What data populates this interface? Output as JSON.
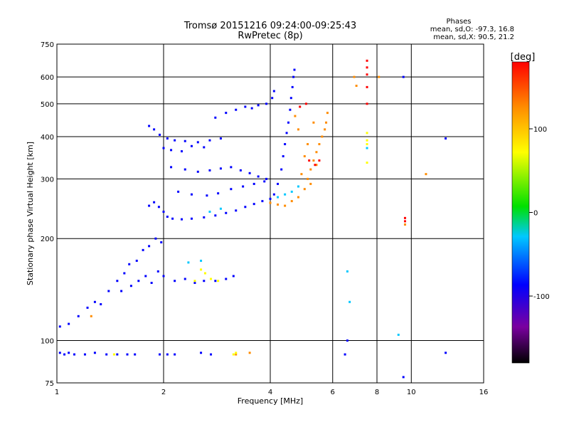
{
  "chart_data": {
    "type": "scatter",
    "title": "Tromsø 20151216 09:24:00-09:25:43",
    "subtitle": "RwPretec (8p)",
    "xlabel": "Frequency [MHz]",
    "ylabel": "Stationary phase Virtual Height [km]",
    "x_scale": "log",
    "y_scale": "log",
    "xlim": [
      1,
      16
    ],
    "ylim": [
      75,
      750
    ],
    "x_ticks": [
      1,
      2,
      4,
      6,
      8,
      10,
      16
    ],
    "x_tick_labels": [
      "1",
      "2",
      "4",
      "6",
      "8",
      "10",
      "16"
    ],
    "y_ticks": [
      75,
      100,
      200,
      300,
      400,
      500,
      600,
      750
    ],
    "y_tick_labels": [
      "75",
      "100",
      "200",
      "300",
      "400",
      "500",
      "600",
      "750"
    ],
    "grid": true,
    "stats": {
      "heading": "Phases",
      "line_o": "mean, sd,O: -97.3, 16.8",
      "line_x": "mean, sd,X:  90.5, 21.2"
    },
    "colorbar": {
      "label": "[deg]",
      "ticks": [
        -100,
        0,
        100
      ],
      "tick_labels": [
        "-100",
        "0",
        "100"
      ],
      "range": [
        -180,
        180
      ],
      "colormap": "rainbow",
      "colors": [
        "#000000",
        "#7a00a0",
        "#0000ff",
        "#00c8ff",
        "#00e000",
        "#ffff00",
        "#ff8c00",
        "#ff0000"
      ]
    },
    "series": [
      {
        "phase_deg": -100,
        "points": [
          [
            1.02,
            92
          ],
          [
            1.05,
            91
          ],
          [
            1.08,
            92
          ],
          [
            1.12,
            91
          ],
          [
            1.2,
            91
          ],
          [
            1.28,
            92
          ],
          [
            1.38,
            91
          ],
          [
            1.48,
            91
          ],
          [
            1.58,
            91
          ],
          [
            1.66,
            91
          ],
          [
            1.95,
            91
          ],
          [
            2.05,
            91
          ],
          [
            2.15,
            91
          ],
          [
            2.55,
            92
          ],
          [
            2.72,
            91
          ],
          [
            1.02,
            110
          ],
          [
            1.08,
            112
          ],
          [
            1.15,
            118
          ],
          [
            1.22,
            125
          ],
          [
            1.28,
            130
          ],
          [
            1.33,
            128
          ],
          [
            1.4,
            140
          ],
          [
            1.48,
            150
          ],
          [
            1.55,
            158
          ],
          [
            1.6,
            168
          ],
          [
            1.68,
            172
          ],
          [
            1.75,
            185
          ],
          [
            1.82,
            190
          ],
          [
            1.9,
            200
          ],
          [
            1.97,
            195
          ],
          [
            1.52,
            140
          ],
          [
            1.62,
            145
          ],
          [
            1.7,
            150
          ],
          [
            1.78,
            155
          ],
          [
            1.85,
            148
          ],
          [
            1.93,
            160
          ],
          [
            2.0,
            155
          ],
          [
            2.15,
            150
          ],
          [
            2.3,
            152
          ],
          [
            2.45,
            148
          ],
          [
            2.6,
            150
          ],
          [
            2.8,
            150
          ],
          [
            3.0,
            152
          ],
          [
            3.15,
            155
          ],
          [
            1.82,
            250
          ],
          [
            1.88,
            256
          ],
          [
            1.94,
            248
          ],
          [
            2.0,
            240
          ],
          [
            2.05,
            232
          ],
          [
            2.12,
            229
          ],
          [
            2.25,
            228
          ],
          [
            2.4,
            229
          ],
          [
            2.6,
            231
          ],
          [
            2.8,
            234
          ],
          [
            3.0,
            238
          ],
          [
            3.2,
            242
          ],
          [
            3.4,
            248
          ],
          [
            3.6,
            253
          ],
          [
            3.8,
            258
          ],
          [
            4.0,
            262
          ],
          [
            4.1,
            270
          ],
          [
            4.2,
            290
          ],
          [
            4.3,
            320
          ],
          [
            4.35,
            350
          ],
          [
            4.4,
            380
          ],
          [
            4.45,
            410
          ],
          [
            4.5,
            440
          ],
          [
            4.55,
            480
          ],
          [
            4.58,
            520
          ],
          [
            4.62,
            560
          ],
          [
            4.65,
            600
          ],
          [
            4.68,
            630
          ],
          [
            1.82,
            430
          ],
          [
            1.88,
            420
          ],
          [
            1.95,
            405
          ],
          [
            2.05,
            395
          ],
          [
            2.15,
            390
          ],
          [
            2.3,
            388
          ],
          [
            2.5,
            385
          ],
          [
            2.7,
            390
          ],
          [
            2.9,
            395
          ],
          [
            2.0,
            370
          ],
          [
            2.1,
            365
          ],
          [
            2.25,
            362
          ],
          [
            2.4,
            375
          ],
          [
            2.6,
            372
          ],
          [
            2.8,
            455
          ],
          [
            3.0,
            470
          ],
          [
            3.2,
            480
          ],
          [
            3.4,
            490
          ],
          [
            3.55,
            485
          ],
          [
            3.7,
            495
          ],
          [
            3.9,
            500
          ],
          [
            4.05,
            520
          ],
          [
            4.1,
            545
          ],
          [
            2.1,
            325
          ],
          [
            2.3,
            320
          ],
          [
            2.5,
            315
          ],
          [
            2.7,
            318
          ],
          [
            2.9,
            322
          ],
          [
            3.1,
            325
          ],
          [
            3.3,
            318
          ],
          [
            3.5,
            312
          ],
          [
            3.7,
            305
          ],
          [
            3.9,
            300
          ],
          [
            2.2,
            275
          ],
          [
            2.4,
            270
          ],
          [
            2.65,
            268
          ],
          [
            2.85,
            272
          ],
          [
            3.1,
            280
          ],
          [
            3.35,
            285
          ],
          [
            3.6,
            290
          ],
          [
            3.85,
            295
          ],
          [
            6.5,
            91
          ],
          [
            6.6,
            100
          ],
          [
            9.5,
            600
          ],
          [
            9.5,
            78
          ],
          [
            12.5,
            395
          ],
          [
            12.5,
            92
          ]
        ]
      },
      {
        "phase_deg": 100,
        "points": [
          [
            4.0,
            255
          ],
          [
            4.2,
            252
          ],
          [
            4.4,
            250
          ],
          [
            4.6,
            258
          ],
          [
            4.8,
            265
          ],
          [
            5.0,
            280
          ],
          [
            5.1,
            300
          ],
          [
            5.2,
            320
          ],
          [
            5.3,
            340
          ],
          [
            5.4,
            360
          ],
          [
            5.5,
            380
          ],
          [
            5.6,
            400
          ],
          [
            5.7,
            420
          ],
          [
            5.75,
            440
          ],
          [
            5.8,
            470
          ],
          [
            5.2,
            290
          ],
          [
            5.4,
            330
          ],
          [
            4.9,
            310
          ],
          [
            5.0,
            350
          ],
          [
            5.1,
            380
          ],
          [
            4.8,
            420
          ],
          [
            4.7,
            460
          ],
          [
            5.3,
            440
          ],
          [
            3.2,
            91
          ],
          [
            3.5,
            92
          ],
          [
            1.25,
            118
          ],
          [
            6.9,
            600
          ],
          [
            7.0,
            565
          ],
          [
            8.1,
            600
          ],
          [
            9.6,
            220
          ],
          [
            11.0,
            310
          ]
        ]
      },
      {
        "phase_deg": 160,
        "points": [
          [
            5.15,
            340
          ],
          [
            5.35,
            330
          ],
          [
            5.5,
            340
          ],
          [
            4.85,
            490
          ],
          [
            5.05,
            500
          ],
          [
            7.5,
            670
          ],
          [
            7.5,
            640
          ],
          [
            7.5,
            610
          ],
          [
            7.5,
            560
          ],
          [
            7.5,
            500
          ],
          [
            9.6,
            230
          ],
          [
            9.6,
            225
          ]
        ]
      },
      {
        "phase_deg": 20,
        "points": [
          [
            3.15,
            91
          ],
          [
            2.45,
            150
          ],
          [
            2.55,
            162
          ],
          [
            2.62,
            158
          ],
          [
            2.72,
            152
          ],
          [
            2.85,
            150
          ],
          [
            3.2,
            92
          ],
          [
            7.5,
            410
          ],
          [
            7.5,
            390
          ],
          [
            7.5,
            380
          ],
          [
            7.5,
            335
          ],
          [
            1.45,
            91
          ]
        ]
      },
      {
        "phase_deg": -40,
        "points": [
          [
            4.2,
            265
          ],
          [
            4.4,
            270
          ],
          [
            4.6,
            275
          ],
          [
            4.8,
            285
          ],
          [
            2.7,
            240
          ],
          [
            2.9,
            245
          ],
          [
            2.35,
            170
          ],
          [
            2.55,
            172
          ],
          [
            6.6,
            160
          ],
          [
            7.5,
            370
          ],
          [
            9.2,
            104
          ],
          [
            6.7,
            130
          ]
        ]
      }
    ]
  }
}
